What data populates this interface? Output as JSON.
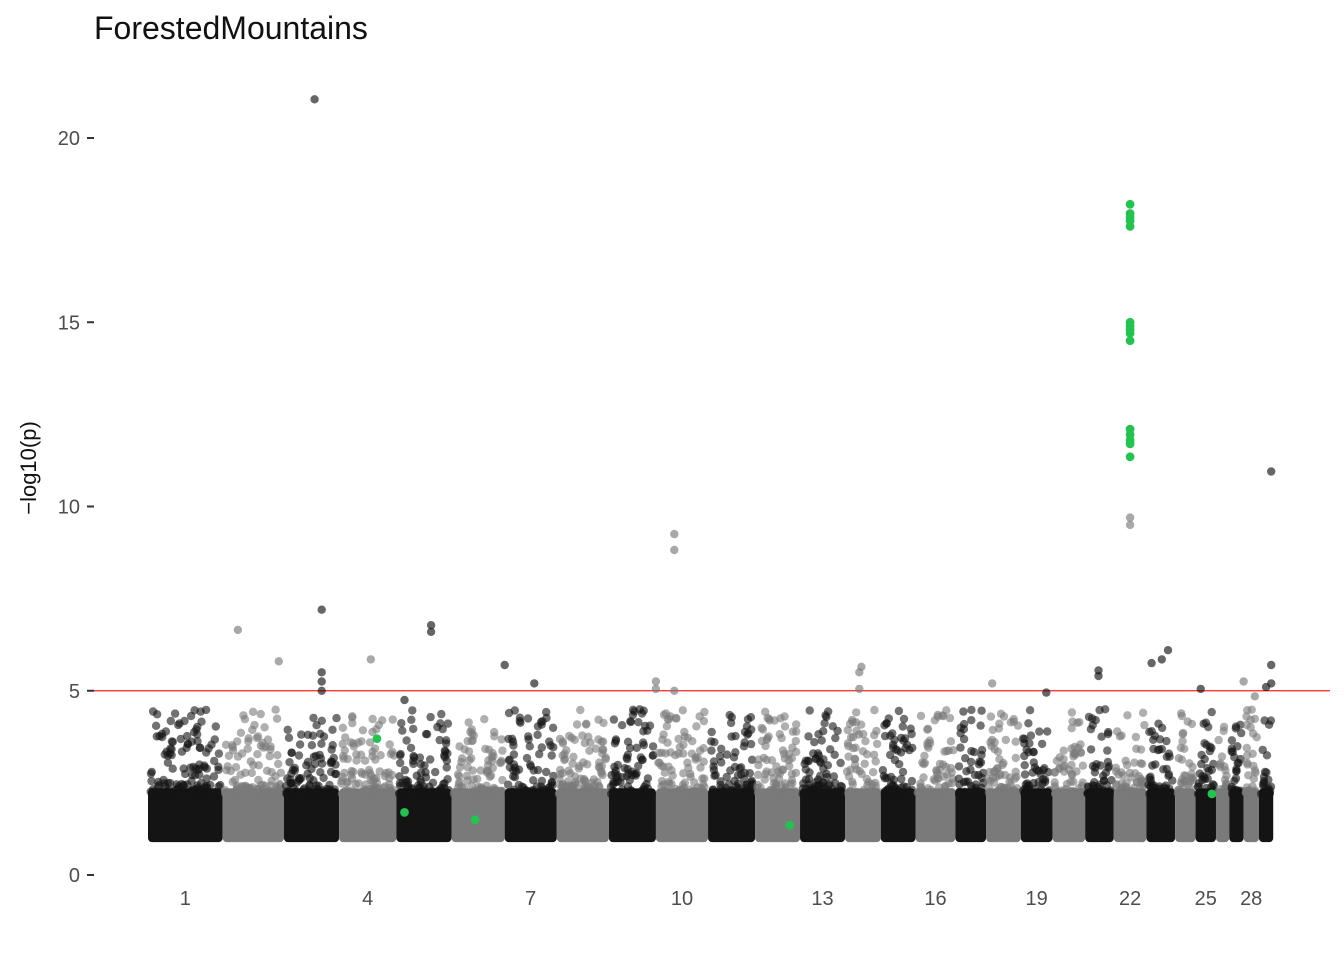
{
  "chart_data": {
    "type": "scatter",
    "subtype": "manhattan",
    "title": "ForestedMountains",
    "xlabel": "",
    "ylabel": "−log10(p)",
    "ylim": [
      0,
      21.8
    ],
    "y_ticks": [
      0,
      5,
      10,
      15,
      20
    ],
    "x_tick_labels": [
      "1",
      "4",
      "7",
      "10",
      "13",
      "16",
      "19",
      "22",
      "25",
      "28"
    ],
    "threshold": 5,
    "colors": {
      "chrom_dark": "#141414",
      "chrom_light": "#7a7a7a",
      "highlight": "#22c34e",
      "threshold_line": "#ff2020",
      "axis_tick": "#333333"
    },
    "chromosomes": [
      {
        "chrom": 1,
        "start": 0,
        "end": 73,
        "tick": true
      },
      {
        "chrom": 2,
        "start": 73,
        "end": 133
      },
      {
        "chrom": 3,
        "start": 133,
        "end": 187
      },
      {
        "chrom": 4,
        "start": 187,
        "end": 243,
        "tick": true
      },
      {
        "chrom": 5,
        "start": 243,
        "end": 297
      },
      {
        "chrom": 6,
        "start": 297,
        "end": 349
      },
      {
        "chrom": 7,
        "start": 349,
        "end": 400,
        "tick": true
      },
      {
        "chrom": 8,
        "start": 400,
        "end": 451
      },
      {
        "chrom": 9,
        "start": 451,
        "end": 497
      },
      {
        "chrom": 10,
        "start": 497,
        "end": 548,
        "tick": true
      },
      {
        "chrom": 11,
        "start": 548,
        "end": 594
      },
      {
        "chrom": 12,
        "start": 594,
        "end": 638
      },
      {
        "chrom": 13,
        "start": 638,
        "end": 682,
        "tick": true
      },
      {
        "chrom": 14,
        "start": 682,
        "end": 717
      },
      {
        "chrom": 15,
        "start": 717,
        "end": 751
      },
      {
        "chrom": 16,
        "start": 751,
        "end": 790,
        "tick": true
      },
      {
        "chrom": 17,
        "start": 790,
        "end": 820
      },
      {
        "chrom": 18,
        "start": 820,
        "end": 854
      },
      {
        "chrom": 19,
        "start": 854,
        "end": 885,
        "tick": true
      },
      {
        "chrom": 20,
        "start": 885,
        "end": 917
      },
      {
        "chrom": 21,
        "start": 917,
        "end": 945
      },
      {
        "chrom": 22,
        "start": 945,
        "end": 977,
        "tick": true
      },
      {
        "chrom": 23,
        "start": 977,
        "end": 1005
      },
      {
        "chrom": 24,
        "start": 1005,
        "end": 1025
      },
      {
        "chrom": 25,
        "start": 1025,
        "end": 1045,
        "tick": true
      },
      {
        "chrom": 26,
        "start": 1045,
        "end": 1058
      },
      {
        "chrom": 27,
        "start": 1058,
        "end": 1072
      },
      {
        "chrom": 28,
        "start": 1072,
        "end": 1087,
        "tick": true
      },
      {
        "chrom": 29,
        "start": 1087,
        "end": 1101
      }
    ],
    "notable_points": [
      {
        "pos": 163,
        "p": 21.05
      },
      {
        "pos": 170,
        "p": 7.2
      },
      {
        "pos": 170,
        "p": 5.5
      },
      {
        "pos": 170,
        "p": 5.25
      },
      {
        "pos": 170,
        "p": 5.0
      },
      {
        "pos": 88,
        "p": 6.65
      },
      {
        "pos": 128,
        "p": 5.8
      },
      {
        "pos": 218,
        "p": 5.85
      },
      {
        "pos": 277,
        "p": 6.78
      },
      {
        "pos": 277,
        "p": 6.6
      },
      {
        "pos": 349,
        "p": 5.7
      },
      {
        "pos": 378,
        "p": 5.2
      },
      {
        "pos": 251,
        "p": 4.75
      },
      {
        "pos": 497,
        "p": 5.25
      },
      {
        "pos": 497,
        "p": 5.05
      },
      {
        "pos": 515,
        "p": 9.25
      },
      {
        "pos": 515,
        "p": 8.82
      },
      {
        "pos": 515,
        "p": 5.0
      },
      {
        "pos": 698,
        "p": 5.65
      },
      {
        "pos": 696,
        "p": 5.5
      },
      {
        "pos": 696,
        "p": 5.05
      },
      {
        "pos": 826,
        "p": 5.2
      },
      {
        "pos": 879,
        "p": 4.95
      },
      {
        "pos": 930,
        "p": 5.55
      },
      {
        "pos": 930,
        "p": 5.4
      },
      {
        "pos": 961,
        "p": 9.7
      },
      {
        "pos": 961,
        "p": 9.5
      },
      {
        "pos": 982,
        "p": 5.75
      },
      {
        "pos": 992,
        "p": 5.85
      },
      {
        "pos": 998,
        "p": 6.1
      },
      {
        "pos": 1030,
        "p": 5.05
      },
      {
        "pos": 1072,
        "p": 5.25
      },
      {
        "pos": 1083,
        "p": 4.85
      },
      {
        "pos": 1094,
        "p": 5.1
      },
      {
        "pos": 1099,
        "p": 10.95
      },
      {
        "pos": 1099,
        "p": 5.7
      },
      {
        "pos": 1099,
        "p": 5.2
      }
    ],
    "highlighted_points": [
      {
        "pos": 961,
        "p": 18.2
      },
      {
        "pos": 961,
        "p": 17.95
      },
      {
        "pos": 961,
        "p": 17.85
      },
      {
        "pos": 961,
        "p": 17.75
      },
      {
        "pos": 961,
        "p": 17.6
      },
      {
        "pos": 961,
        "p": 15.0
      },
      {
        "pos": 961,
        "p": 14.9
      },
      {
        "pos": 961,
        "p": 14.8
      },
      {
        "pos": 961,
        "p": 14.7
      },
      {
        "pos": 961,
        "p": 14.5
      },
      {
        "pos": 961,
        "p": 12.1
      },
      {
        "pos": 961,
        "p": 11.95
      },
      {
        "pos": 961,
        "p": 11.8
      },
      {
        "pos": 961,
        "p": 11.7
      },
      {
        "pos": 961,
        "p": 11.35
      },
      {
        "pos": 224,
        "p": 3.7
      },
      {
        "pos": 251,
        "p": 1.7
      },
      {
        "pos": 320,
        "p": 1.5
      },
      {
        "pos": 628,
        "p": 1.35
      },
      {
        "pos": 1041,
        "p": 2.2
      }
    ]
  }
}
